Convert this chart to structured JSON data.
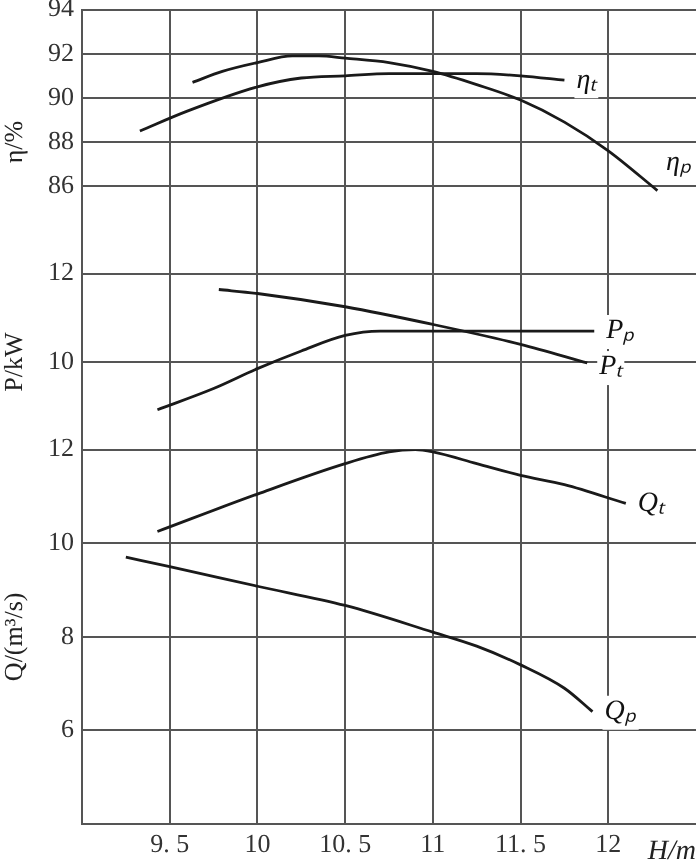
{
  "chart_data": [
    {
      "type": "line",
      "ylabel": "η/%",
      "xlim": [
        9,
        12.5
      ],
      "xticks": [
        9.5,
        10,
        10.5,
        11,
        11.5,
        12
      ],
      "ylim": [
        82,
        94
      ],
      "yticks": [
        86,
        88,
        90,
        92,
        94
      ],
      "grid": true,
      "tick_labels": "y",
      "marker": "none",
      "line_style": "solid",
      "series": [
        {
          "name": "ηₜ",
          "color": "#1a1a1a",
          "x": [
            9.33,
            9.6,
            10,
            10.25,
            10.5,
            10.75,
            11,
            11.25,
            11.5,
            11.75
          ],
          "values": [
            88.5,
            89.4,
            90.5,
            90.9,
            91.0,
            91.1,
            91.1,
            91.1,
            91.0,
            90.8
          ]
        },
        {
          "name": "ηₚ",
          "color": "#1a1a1a",
          "x": [
            9.63,
            9.8,
            10,
            10.2,
            10.35,
            10.5,
            10.75,
            11,
            11.25,
            11.5,
            11.75,
            12,
            12.28
          ],
          "values": [
            90.7,
            91.2,
            91.6,
            91.9,
            91.9,
            91.8,
            91.6,
            91.2,
            90.6,
            89.9,
            88.9,
            87.6,
            85.8
          ]
        }
      ]
    },
    {
      "type": "line",
      "ylabel": "P/kW",
      "xlim": [
        9,
        12.5
      ],
      "xticks": [
        9.5,
        10,
        10.5,
        11,
        11.5,
        12
      ],
      "ylim": [
        8,
        12
      ],
      "yticks": [
        10,
        12
      ],
      "grid": true,
      "tick_labels": "y",
      "marker": "none",
      "line_style": "solid",
      "series": [
        {
          "name": "Pₜ",
          "color": "#1a1a1a",
          "x": [
            9.78,
            10,
            10.5,
            11,
            11.5,
            11.88
          ],
          "values": [
            11.64,
            11.55,
            11.25,
            10.85,
            10.4,
            9.98
          ]
        },
        {
          "name": "Pₚ",
          "color": "#1a1a1a",
          "x": [
            9.43,
            9.75,
            10,
            10.25,
            10.5,
            10.7,
            11,
            11.5,
            11.92
          ],
          "values": [
            8.92,
            9.4,
            9.85,
            10.25,
            10.6,
            10.7,
            10.7,
            10.7,
            10.7
          ]
        }
      ]
    },
    {
      "type": "line",
      "ylabel": "Q/(m³/s)",
      "xlabel": "H/m",
      "xlim": [
        9,
        12.5
      ],
      "xticks": [
        {
          "value": 9.5,
          "label": "9. 5"
        },
        10,
        {
          "value": 10.5,
          "label": "10. 5"
        },
        11,
        {
          "value": 11.5,
          "label": "11. 5"
        },
        12
      ],
      "ylim": [
        4,
        12
      ],
      "yticks": [
        6,
        8,
        10,
        12
      ],
      "grid": true,
      "marker": "none",
      "line_style": "solid",
      "series": [
        {
          "name": "Qₜ",
          "color": "#1a1a1a",
          "x": [
            9.43,
            10,
            10.5,
            10.75,
            10.9,
            11,
            11.25,
            11.5,
            11.75,
            12.1
          ],
          "values": [
            10.25,
            11.05,
            11.7,
            11.95,
            12.0,
            11.95,
            11.7,
            11.45,
            11.25,
            10.85
          ]
        },
        {
          "name": "Qₚ",
          "color": "#1a1a1a",
          "x": [
            9.25,
            9.5,
            10,
            10.5,
            11,
            11.25,
            11.5,
            11.75,
            11.91
          ],
          "values": [
            9.7,
            9.5,
            9.08,
            8.67,
            8.1,
            7.8,
            7.4,
            6.9,
            6.4
          ]
        }
      ]
    }
  ]
}
